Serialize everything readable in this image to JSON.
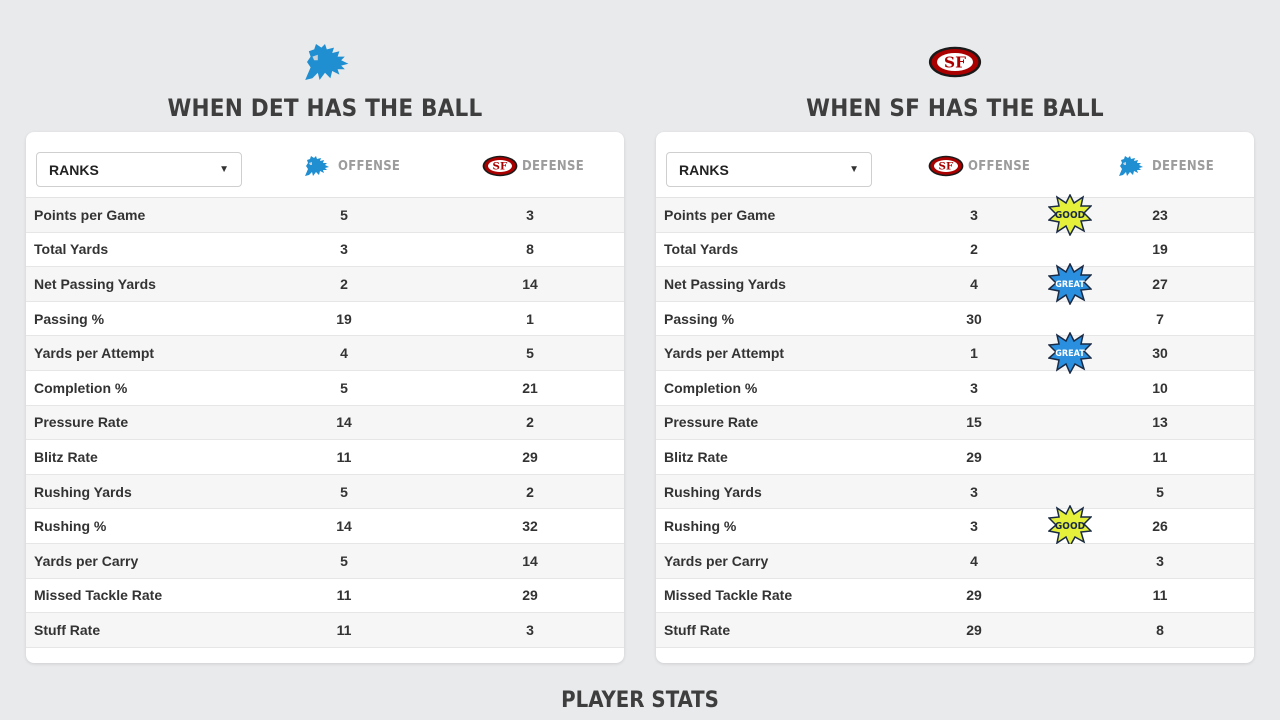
{
  "colors": {
    "background": "#e9eaec",
    "lions_blue": "#1f8fd1",
    "niners_red": "#aa0000",
    "niners_gold": "#d4b77a",
    "good_badge": "#e4f03a",
    "great_badge": "#2a8fde"
  },
  "left": {
    "team_icon": "lions-logo-icon",
    "title": "WHEN DET HAS THE BALL",
    "select_value": "RANKS",
    "col1_label": "OFFENSE",
    "col1_icon": "lions-logo-icon",
    "col2_label": "DEFENSE",
    "col2_icon": "49ers-logo-icon",
    "rows": [
      {
        "label": "Points per Game",
        "v1": "5",
        "v2": "3"
      },
      {
        "label": "Total Yards",
        "v1": "3",
        "v2": "8"
      },
      {
        "label": "Net Passing Yards",
        "v1": "2",
        "v2": "14"
      },
      {
        "label": "Passing %",
        "v1": "19",
        "v2": "1"
      },
      {
        "label": "Yards per Attempt",
        "v1": "4",
        "v2": "5"
      },
      {
        "label": "Completion %",
        "v1": "5",
        "v2": "21"
      },
      {
        "label": "Pressure Rate",
        "v1": "14",
        "v2": "2"
      },
      {
        "label": "Blitz Rate",
        "v1": "11",
        "v2": "29"
      },
      {
        "label": "Rushing Yards",
        "v1": "5",
        "v2": "2"
      },
      {
        "label": "Rushing %",
        "v1": "14",
        "v2": "32"
      },
      {
        "label": "Yards per Carry",
        "v1": "5",
        "v2": "14"
      },
      {
        "label": "Missed Tackle Rate",
        "v1": "11",
        "v2": "29"
      },
      {
        "label": "Stuff Rate",
        "v1": "11",
        "v2": "3"
      }
    ]
  },
  "right": {
    "team_icon": "49ers-logo-icon",
    "title": "WHEN SF HAS THE BALL",
    "select_value": "RANKS",
    "col1_label": "OFFENSE",
    "col1_icon": "49ers-logo-icon",
    "col2_label": "DEFENSE",
    "col2_icon": "lions-logo-icon",
    "rows": [
      {
        "label": "Points per Game",
        "v1": "3",
        "v2": "23",
        "badge": "GOOD"
      },
      {
        "label": "Total Yards",
        "v1": "2",
        "v2": "19"
      },
      {
        "label": "Net Passing Yards",
        "v1": "4",
        "v2": "27",
        "badge": "GREAT"
      },
      {
        "label": "Passing %",
        "v1": "30",
        "v2": "7"
      },
      {
        "label": "Yards per Attempt",
        "v1": "1",
        "v2": "30",
        "badge": "GREAT"
      },
      {
        "label": "Completion %",
        "v1": "3",
        "v2": "10"
      },
      {
        "label": "Pressure Rate",
        "v1": "15",
        "v2": "13"
      },
      {
        "label": "Blitz Rate",
        "v1": "29",
        "v2": "11"
      },
      {
        "label": "Rushing Yards",
        "v1": "3",
        "v2": "5"
      },
      {
        "label": "Rushing %",
        "v1": "3",
        "v2": "26",
        "badge": "GOOD"
      },
      {
        "label": "Yards per Carry",
        "v1": "4",
        "v2": "3"
      },
      {
        "label": "Missed Tackle Rate",
        "v1": "29",
        "v2": "11"
      },
      {
        "label": "Stuff Rate",
        "v1": "29",
        "v2": "8"
      }
    ]
  },
  "footer_title": "PLAYER STATS"
}
